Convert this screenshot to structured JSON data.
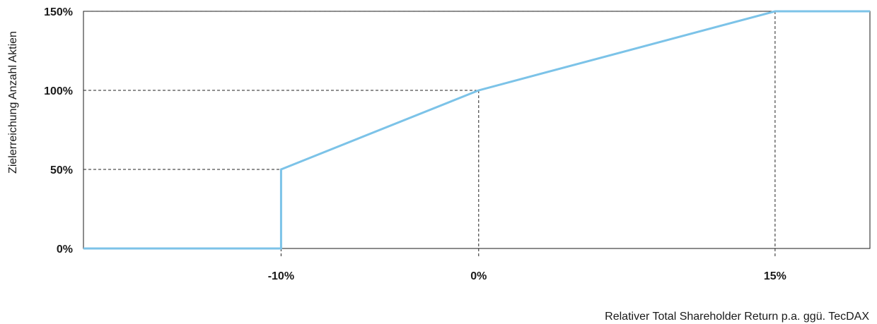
{
  "chart_data": {
    "type": "line",
    "title": "",
    "xlabel": "Relativer Total Shareholder Return p.a. ggü. TecDAX",
    "ylabel": "Zielerreichung Anzahl Aktien",
    "x_tick_labels": [
      "-10%",
      "0%",
      "15%"
    ],
    "y_tick_labels": [
      "0%",
      "50%",
      "100%",
      "150%"
    ],
    "xlim": [
      -20,
      19.8
    ],
    "ylim": [
      0,
      150
    ],
    "grid": "dashed reference lines at breakpoints",
    "line_color": "#7cc3e8",
    "series": [
      {
        "points": [
          {
            "x": -20,
            "y": 0
          },
          {
            "x": -10,
            "y": 0
          },
          {
            "x": -10,
            "y": 50
          },
          {
            "x": 0,
            "y": 100
          },
          {
            "x": 15,
            "y": 150
          },
          {
            "x": 19.8,
            "y": 150
          }
        ]
      }
    ],
    "reference_points": [
      {
        "x": -10,
        "y": 50
      },
      {
        "x": 0,
        "y": 100
      },
      {
        "x": 15,
        "y": 150
      }
    ]
  }
}
